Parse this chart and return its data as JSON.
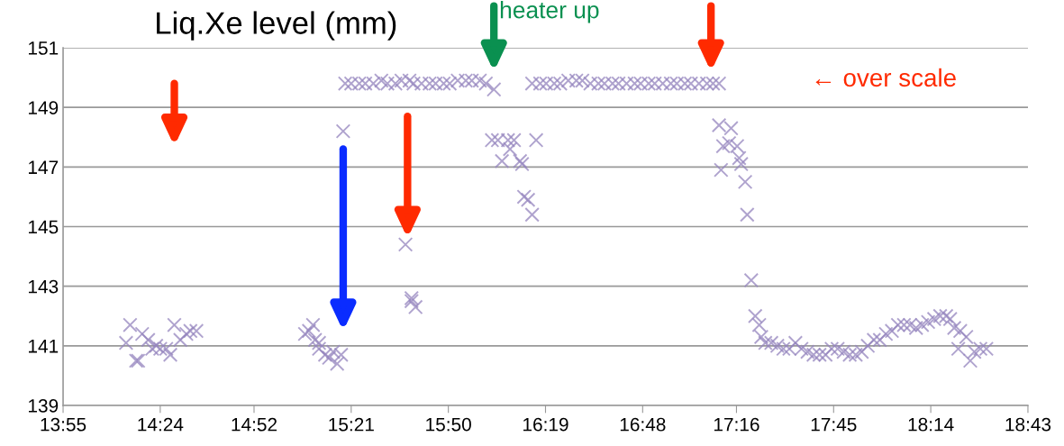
{
  "chart_data": {
    "type": "scatter",
    "title": "Liq.Xe level (mm)",
    "marker": "cross",
    "grid": "y",
    "xlim": [
      13.9167,
      18.7167
    ],
    "xticks": [
      {
        "value": 13.9167,
        "label": "13:55"
      },
      {
        "value": 14.4,
        "label": "14:24"
      },
      {
        "value": 14.8667,
        "label": "14:52"
      },
      {
        "value": 15.35,
        "label": "15:21"
      },
      {
        "value": 15.8333,
        "label": "15:50"
      },
      {
        "value": 16.3167,
        "label": "16:19"
      },
      {
        "value": 16.8,
        "label": "16:48"
      },
      {
        "value": 17.2667,
        "label": "17:16"
      },
      {
        "value": 17.75,
        "label": "17:45"
      },
      {
        "value": 18.2333,
        "label": "18:14"
      },
      {
        "value": 18.7167,
        "label": "18:43"
      }
    ],
    "ylim": [
      139,
      151
    ],
    "yticks": [
      139,
      141,
      143,
      145,
      147,
      149,
      151
    ],
    "series": [
      {
        "color": "#9484bd",
        "x": [
          14.23,
          14.25,
          14.28,
          14.29,
          14.31,
          14.34,
          14.36,
          14.38,
          14.4,
          14.43,
          14.45,
          14.47,
          14.5,
          14.53,
          14.55,
          14.58,
          15.12,
          15.16,
          15.14,
          15.17,
          15.19,
          15.19,
          15.22,
          15.24,
          15.26,
          15.28,
          15.3,
          15.31,
          15.32,
          15.35,
          15.39,
          15.42,
          15.46,
          15.5,
          15.53,
          15.57,
          15.6,
          15.64,
          15.62,
          15.65,
          15.65,
          15.67,
          15.66,
          15.7,
          15.74,
          15.77,
          15.81,
          15.84,
          15.88,
          15.92,
          15.95,
          15.99,
          16.02,
          16.06,
          16.05,
          16.08,
          16.1,
          16.13,
          16.14,
          16.16,
          16.19,
          16.2,
          16.21,
          16.23,
          16.25,
          16.27,
          16.25,
          16.29,
          16.32,
          16.36,
          16.39,
          16.43,
          16.47,
          16.5,
          16.54,
          16.58,
          16.61,
          16.65,
          16.68,
          16.72,
          16.76,
          16.79,
          16.83,
          16.86,
          16.9,
          16.94,
          16.97,
          17.01,
          17.04,
          17.08,
          17.12,
          17.15,
          17.18,
          17.18,
          17.19,
          17.2,
          17.23,
          17.24,
          17.27,
          17.28,
          17.29,
          17.31,
          17.32,
          17.34,
          17.36,
          17.38,
          17.39,
          17.41,
          17.44,
          17.47,
          17.5,
          17.53,
          17.56,
          17.59,
          17.62,
          17.65,
          17.68,
          17.71,
          17.74,
          17.77,
          17.8,
          17.83,
          17.86,
          17.89,
          17.92,
          17.95,
          17.98,
          18.01,
          18.04,
          18.07,
          18.1,
          18.13,
          18.16,
          18.19,
          18.22,
          18.25,
          18.28,
          18.31,
          18.33,
          18.35,
          18.37,
          18.38,
          18.41,
          18.43,
          18.45,
          18.48,
          18.51
        ],
        "values": [
          141.1,
          141.7,
          140.5,
          140.5,
          141.4,
          141.2,
          140.9,
          141.0,
          140.9,
          140.9,
          140.7,
          141.7,
          141.2,
          141.4,
          141.5,
          141.5,
          141.4,
          141.7,
          141.5,
          141.2,
          141.1,
          140.9,
          140.7,
          140.6,
          140.8,
          140.4,
          140.7,
          148.2,
          149.8,
          149.8,
          149.8,
          149.8,
          149.8,
          149.9,
          149.8,
          149.8,
          149.9,
          149.9,
          144.4,
          142.6,
          142.5,
          142.3,
          149.8,
          149.8,
          149.8,
          149.8,
          149.8,
          149.8,
          149.9,
          149.9,
          149.9,
          149.9,
          149.8,
          149.6,
          147.9,
          147.9,
          147.2,
          147.9,
          147.6,
          147.9,
          147.2,
          147.1,
          146.0,
          145.9,
          145.4,
          147.9,
          149.8,
          149.8,
          149.8,
          149.8,
          149.8,
          149.9,
          149.9,
          149.9,
          149.8,
          149.8,
          149.8,
          149.8,
          149.8,
          149.8,
          149.8,
          149.8,
          149.8,
          149.8,
          149.8,
          149.8,
          149.8,
          149.8,
          149.8,
          149.8,
          149.8,
          149.8,
          149.8,
          148.4,
          146.9,
          147.7,
          147.8,
          148.3,
          147.7,
          147.3,
          147.1,
          146.5,
          145.4,
          143.2,
          142.0,
          141.7,
          141.3,
          141.1,
          141.1,
          141.0,
          140.9,
          140.9,
          141.1,
          140.9,
          140.8,
          140.7,
          140.7,
          140.7,
          140.9,
          140.9,
          140.8,
          140.7,
          140.7,
          140.8,
          141.0,
          141.2,
          141.2,
          141.4,
          141.5,
          141.7,
          141.7,
          141.7,
          141.6,
          141.7,
          141.8,
          141.9,
          142.0,
          142.0,
          141.9,
          141.6,
          140.9,
          141.5,
          141.3,
          140.5,
          140.8,
          140.9,
          140.9
        ]
      }
    ],
    "annotations": [
      "heater up",
      "← over scale"
    ]
  }
}
